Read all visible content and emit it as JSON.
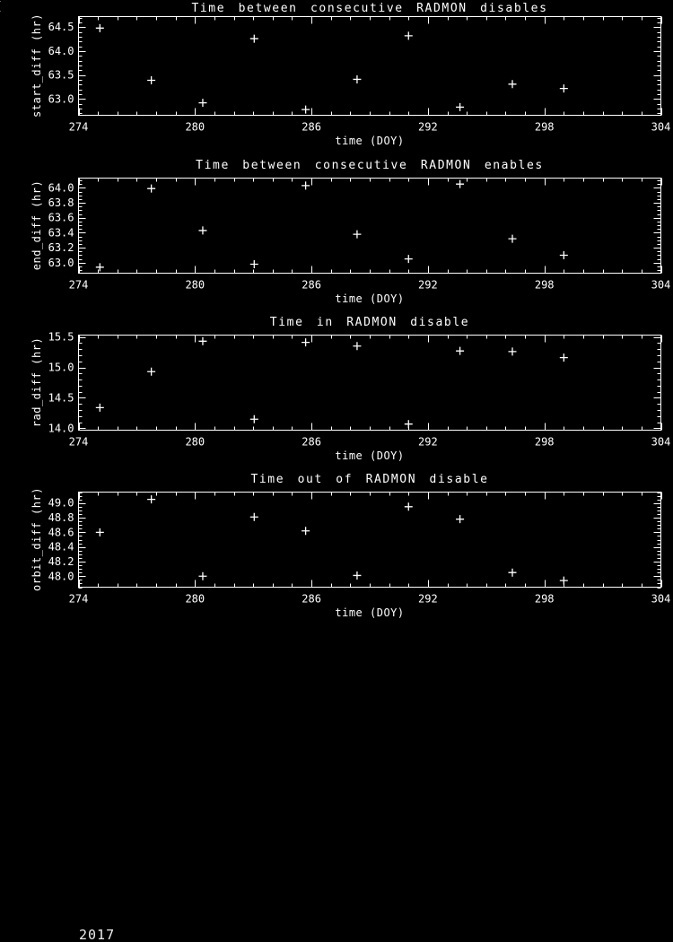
{
  "page": {
    "background": "#000000",
    "foreground": "#ffffff",
    "corner_artifact": "("
  },
  "footer": {
    "year_label": "2017"
  },
  "chart_data": [
    {
      "type": "scatter",
      "title": "Time between consecutive RADMON disables",
      "xlabel": "time (DOY)",
      "ylabel": "start_diff (hr)",
      "marker": "plus",
      "marker_color": "#ffffff",
      "grid": false,
      "x": [
        275.1,
        277.75,
        280.4,
        283.05,
        285.7,
        288.35,
        291.0,
        293.65,
        296.35,
        299.0
      ],
      "y": [
        64.48,
        63.39,
        62.92,
        64.26,
        62.78,
        63.41,
        64.32,
        62.83,
        63.31,
        63.22
      ],
      "xlim": [
        274,
        304
      ],
      "ylim": [
        62.66,
        64.72
      ],
      "xticks": [
        274,
        280,
        286,
        292,
        298,
        304
      ],
      "x_minor_step": 1,
      "yticks": [
        63.0,
        63.5,
        64.0,
        64.5
      ],
      "ytick_labels": [
        "63.0",
        "63.5",
        "64.0",
        "64.5"
      ],
      "y_minor_step": 0.1
    },
    {
      "type": "scatter",
      "title": "Time between consecutive RADMON enables",
      "xlabel": "time (DOY)",
      "ylabel": "end_diff (hr)",
      "marker": "plus",
      "marker_color": "#ffffff",
      "grid": false,
      "x": [
        275.1,
        277.75,
        280.4,
        283.05,
        285.7,
        288.35,
        291.0,
        293.65,
        296.35,
        299.0
      ],
      "y": [
        62.94,
        63.99,
        63.43,
        62.98,
        64.03,
        63.38,
        63.05,
        64.05,
        63.32,
        63.1
      ],
      "xlim": [
        274,
        304
      ],
      "ylim": [
        62.86,
        64.13
      ],
      "xticks": [
        274,
        280,
        286,
        292,
        298,
        304
      ],
      "x_minor_step": 1,
      "yticks": [
        63.0,
        63.2,
        63.4,
        63.6,
        63.8,
        64.0
      ],
      "ytick_labels": [
        "63.0",
        "63.2",
        "63.4",
        "63.6",
        "63.8",
        "64.0"
      ],
      "y_minor_step": 0.05
    },
    {
      "type": "scatter",
      "title": "Time in RADMON disable",
      "xlabel": "time (DOY)",
      "ylabel": "rad_diff (hr)",
      "marker": "plus",
      "marker_color": "#ffffff",
      "grid": false,
      "x": [
        275.1,
        277.75,
        280.4,
        283.05,
        285.7,
        288.35,
        291.0,
        293.65,
        296.35,
        299.0
      ],
      "y": [
        14.34,
        14.93,
        15.43,
        14.15,
        15.41,
        15.35,
        14.07,
        15.27,
        15.26,
        15.16
      ],
      "xlim": [
        274,
        304
      ],
      "ylim": [
        13.97,
        15.53
      ],
      "xticks": [
        274,
        280,
        286,
        292,
        298,
        304
      ],
      "x_minor_step": 1,
      "yticks": [
        14.0,
        14.5,
        15.0,
        15.5
      ],
      "ytick_labels": [
        "14.0",
        "14.5",
        "15.0",
        "15.5"
      ],
      "y_minor_step": 0.1
    },
    {
      "type": "scatter",
      "title": "Time out of RADMON disable",
      "xlabel": "time (DOY)",
      "ylabel": "orbit_diff (hr)",
      "marker": "plus",
      "marker_color": "#ffffff",
      "grid": false,
      "x": [
        275.1,
        277.75,
        280.4,
        283.05,
        285.7,
        288.35,
        291.0,
        293.65,
        296.35,
        299.0
      ],
      "y": [
        48.6,
        49.05,
        48.0,
        48.81,
        48.62,
        48.01,
        48.95,
        48.78,
        48.05,
        47.94
      ],
      "xlim": [
        274,
        304
      ],
      "ylim": [
        47.85,
        49.15
      ],
      "xticks": [
        274,
        280,
        286,
        292,
        298,
        304
      ],
      "x_minor_step": 1,
      "yticks": [
        48.0,
        48.2,
        48.4,
        48.6,
        48.8,
        49.0
      ],
      "ytick_labels": [
        "48.0",
        "48.2",
        "48.4",
        "48.6",
        "48.8",
        "49.0"
      ],
      "y_minor_step": 0.05
    }
  ]
}
